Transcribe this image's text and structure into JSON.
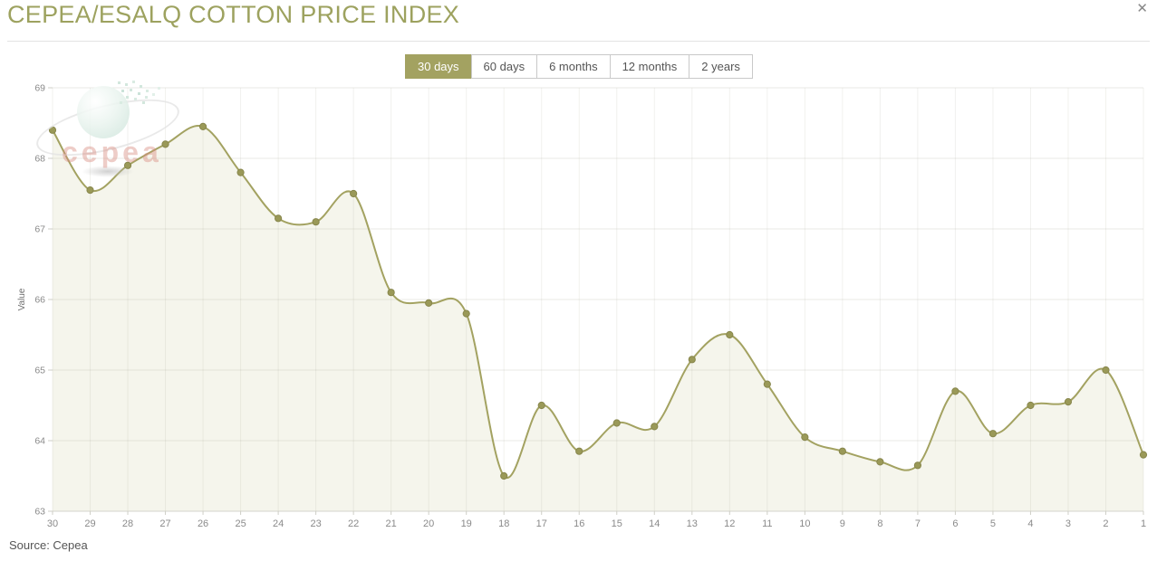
{
  "header": {
    "title": "CEPEA/ESALQ COTTON PRICE INDEX",
    "close_icon": "✕"
  },
  "tabs": [
    {
      "label": "30 days",
      "active": true
    },
    {
      "label": "60 days",
      "active": false
    },
    {
      "label": "6 months",
      "active": false
    },
    {
      "label": "12 months",
      "active": false
    },
    {
      "label": "2 years",
      "active": false
    }
  ],
  "chart_data": {
    "type": "area",
    "title": "CEPEA/ESALQ COTTON PRICE INDEX",
    "xlabel": "",
    "ylabel": "Value",
    "ylim": [
      63,
      69
    ],
    "yticks": [
      63,
      64,
      65,
      66,
      67,
      68,
      69
    ],
    "grid": true,
    "legend": false,
    "categories": [
      "30",
      "29",
      "28",
      "27",
      "26",
      "25",
      "24",
      "23",
      "22",
      "21",
      "20",
      "19",
      "18",
      "17",
      "16",
      "15",
      "14",
      "13",
      "12",
      "11",
      "10",
      "9",
      "8",
      "7",
      "6",
      "5",
      "4",
      "3",
      "2",
      "1"
    ],
    "values": [
      68.4,
      67.55,
      67.9,
      68.2,
      68.45,
      67.8,
      67.15,
      67.1,
      67.5,
      66.1,
      65.95,
      65.8,
      63.5,
      64.5,
      63.85,
      64.25,
      64.2,
      65.15,
      65.5,
      64.8,
      64.05,
      63.85,
      63.7,
      63.65,
      64.7,
      64.1,
      64.5,
      64.55,
      65.0,
      63.8
    ],
    "line_color": "#a3a261",
    "marker_color": "#9a9958",
    "marker_stroke": "#87864c",
    "fill_color": "#f5f5ec",
    "axis_text_color": "#8a8a8a"
  },
  "watermark": {
    "text": "cepea"
  },
  "footer": {
    "source_label": "Source: Cepea"
  }
}
